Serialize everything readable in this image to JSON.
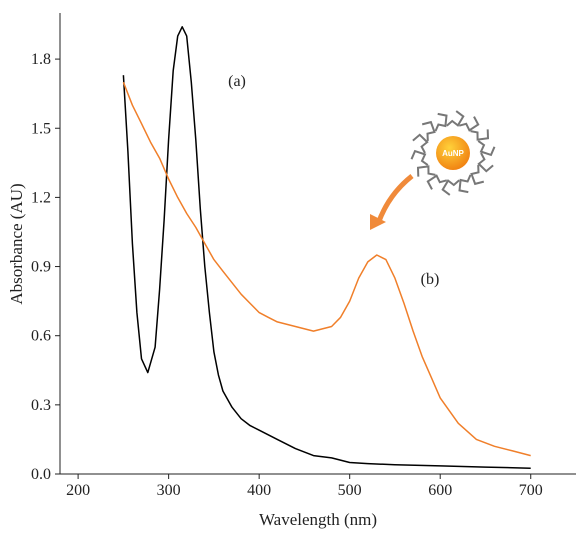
{
  "chart_data": {
    "type": "line",
    "xlabel": "Wavelength (nm)",
    "ylabel": "Absorbance (AU)",
    "xlim": [
      180,
      750
    ],
    "xticks": [
      200,
      300,
      400,
      500,
      600,
      700
    ],
    "ylim": [
      0,
      2.0
    ],
    "yticks": [
      {
        "value": 0,
        "label": "0.0"
      },
      0.3,
      0.6,
      0.9,
      1.2,
      1.5,
      1.8
    ],
    "annotation": "AuNP",
    "series": [
      {
        "name": "(a)",
        "color": "#000000",
        "x": [
          250,
          255,
          260,
          265,
          270,
          277,
          285,
          290,
          295,
          300,
          305,
          310,
          315,
          320,
          325,
          330,
          335,
          340,
          345,
          350,
          355,
          360,
          370,
          380,
          390,
          400,
          420,
          440,
          460,
          480,
          500,
          520,
          550,
          600,
          650,
          700
        ],
        "values": [
          1.73,
          1.4,
          1.0,
          0.7,
          0.5,
          0.44,
          0.55,
          0.8,
          1.1,
          1.45,
          1.75,
          1.9,
          1.94,
          1.9,
          1.7,
          1.45,
          1.15,
          0.9,
          0.7,
          0.53,
          0.43,
          0.36,
          0.29,
          0.24,
          0.21,
          0.19,
          0.15,
          0.11,
          0.08,
          0.07,
          0.05,
          0.045,
          0.04,
          0.035,
          0.03,
          0.025
        ]
      },
      {
        "name": "(b)",
        "color": "#f07f2a",
        "x": [
          250,
          260,
          270,
          280,
          290,
          300,
          310,
          320,
          330,
          340,
          350,
          360,
          370,
          380,
          390,
          400,
          410,
          420,
          440,
          460,
          480,
          490,
          500,
          510,
          520,
          530,
          540,
          550,
          560,
          570,
          580,
          590,
          600,
          620,
          640,
          660,
          680,
          700
        ],
        "values": [
          1.7,
          1.6,
          1.52,
          1.44,
          1.37,
          1.28,
          1.2,
          1.13,
          1.07,
          1.0,
          0.93,
          0.88,
          0.83,
          0.78,
          0.74,
          0.7,
          0.68,
          0.66,
          0.64,
          0.62,
          0.64,
          0.68,
          0.75,
          0.85,
          0.92,
          0.95,
          0.93,
          0.85,
          0.74,
          0.62,
          0.51,
          0.42,
          0.33,
          0.22,
          0.15,
          0.12,
          0.1,
          0.08
        ]
      }
    ]
  }
}
